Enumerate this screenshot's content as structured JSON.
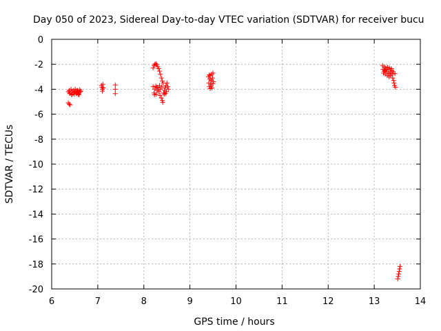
{
  "chart_data": {
    "type": "scatter",
    "title": "Day 050 of 2023, Sidereal Day-to-day VTEC variation (SDTVAR) for receiver bucu",
    "xlabel": "GPS time / hours",
    "ylabel": "SDTVAR / TECUs",
    "xlim": [
      6,
      14
    ],
    "ylim": [
      -20,
      0
    ],
    "xticks": [
      6,
      7,
      8,
      9,
      10,
      11,
      12,
      13,
      14
    ],
    "yticks": [
      0,
      -2,
      -4,
      -6,
      -8,
      -10,
      -12,
      -14,
      -16,
      -18,
      -20
    ],
    "xtick_labels": [
      "6",
      "7",
      "8",
      "9",
      "10",
      "11",
      "12",
      "13",
      "14"
    ],
    "ytick_labels": [
      "0",
      "-2",
      "-4",
      "-6",
      "-8",
      "-10",
      "-12",
      "-14",
      "-16",
      "-18",
      "-20"
    ],
    "grid": true,
    "marker": "plus",
    "colors": {
      "series": "#ff0000",
      "grid": "#a0a0a0",
      "axis": "#000000"
    },
    "series": [
      {
        "name": "SDTVAR",
        "points": [
          [
            6.36,
            -5.1
          ],
          [
            6.38,
            -5.2
          ],
          [
            6.4,
            -5.25
          ],
          [
            6.36,
            -4.2
          ],
          [
            6.38,
            -4.1
          ],
          [
            6.4,
            -4.3
          ],
          [
            6.42,
            -4.0
          ],
          [
            6.44,
            -4.2
          ],
          [
            6.45,
            -4.4
          ],
          [
            6.47,
            -4.1
          ],
          [
            6.48,
            -4.3
          ],
          [
            6.5,
            -4.2
          ],
          [
            6.51,
            -4.0
          ],
          [
            6.53,
            -4.35
          ],
          [
            6.54,
            -4.1
          ],
          [
            6.55,
            -4.25
          ],
          [
            6.57,
            -4.4
          ],
          [
            6.58,
            -4.15
          ],
          [
            6.6,
            -4.3
          ],
          [
            6.61,
            -4.05
          ],
          [
            6.62,
            -4.2
          ],
          [
            6.39,
            -4.35
          ],
          [
            6.43,
            -4.45
          ],
          [
            6.49,
            -4.4
          ],
          [
            6.56,
            -4.1
          ],
          [
            6.59,
            -4.45
          ],
          [
            6.63,
            -4.15
          ],
          [
            7.08,
            -3.7
          ],
          [
            7.09,
            -3.85
          ],
          [
            7.1,
            -4.0
          ],
          [
            7.11,
            -3.6
          ],
          [
            7.12,
            -3.9
          ],
          [
            7.1,
            -4.15
          ],
          [
            7.38,
            -3.65
          ],
          [
            7.38,
            -4.0
          ],
          [
            7.38,
            -4.35
          ],
          [
            8.2,
            -2.3
          ],
          [
            8.22,
            -2.1
          ],
          [
            8.24,
            -2.0
          ],
          [
            8.26,
            -1.95
          ],
          [
            8.28,
            -2.05
          ],
          [
            8.3,
            -2.2
          ],
          [
            8.32,
            -2.35
          ],
          [
            8.34,
            -2.55
          ],
          [
            8.36,
            -2.8
          ],
          [
            8.38,
            -3.1
          ],
          [
            8.4,
            -3.35
          ],
          [
            8.42,
            -3.5
          ],
          [
            8.2,
            -3.8
          ],
          [
            8.22,
            -4.3
          ],
          [
            8.24,
            -4.0
          ],
          [
            8.26,
            -3.75
          ],
          [
            8.27,
            -4.4
          ],
          [
            8.29,
            -4.1
          ],
          [
            8.31,
            -3.9
          ],
          [
            8.33,
            -4.2
          ],
          [
            8.35,
            -4.5
          ],
          [
            8.36,
            -4.0
          ],
          [
            8.38,
            -4.7
          ],
          [
            8.4,
            -4.9
          ],
          [
            8.41,
            -5.05
          ],
          [
            8.43,
            -4.3
          ],
          [
            8.45,
            -4.1
          ],
          [
            8.46,
            -3.9
          ],
          [
            8.48,
            -3.7
          ],
          [
            8.5,
            -3.5
          ],
          [
            8.52,
            -3.8
          ],
          [
            8.53,
            -4.0
          ],
          [
            8.49,
            -4.2
          ],
          [
            8.44,
            -4.4
          ],
          [
            8.39,
            -3.8
          ],
          [
            8.34,
            -3.7
          ],
          [
            8.28,
            -3.85
          ],
          [
            8.23,
            -4.45
          ],
          [
            8.47,
            -4.35
          ],
          [
            9.4,
            -3.0
          ],
          [
            9.41,
            -3.5
          ],
          [
            9.42,
            -3.8
          ],
          [
            9.43,
            -3.2
          ],
          [
            9.44,
            -2.9
          ],
          [
            9.45,
            -3.6
          ],
          [
            9.46,
            -3.3
          ],
          [
            9.47,
            -2.8
          ],
          [
            9.48,
            -3.9
          ],
          [
            9.49,
            -3.1
          ],
          [
            9.5,
            -2.7
          ],
          [
            9.51,
            -3.4
          ],
          [
            9.42,
            -2.85
          ],
          [
            9.46,
            -3.75
          ],
          [
            9.5,
            -3.55
          ],
          [
            9.44,
            -3.95
          ],
          [
            13.18,
            -2.1
          ],
          [
            13.19,
            -2.4
          ],
          [
            13.2,
            -2.7
          ],
          [
            13.22,
            -2.2
          ],
          [
            13.23,
            -2.5
          ],
          [
            13.24,
            -2.8
          ],
          [
            13.25,
            -2.3
          ],
          [
            13.27,
            -2.6
          ],
          [
            13.28,
            -2.9
          ],
          [
            13.3,
            -2.4
          ],
          [
            13.31,
            -2.7
          ],
          [
            13.32,
            -3.0
          ],
          [
            13.33,
            -2.3
          ],
          [
            13.35,
            -2.6
          ],
          [
            13.36,
            -2.9
          ],
          [
            13.38,
            -2.5
          ],
          [
            13.39,
            -2.8
          ],
          [
            13.4,
            -3.1
          ],
          [
            13.41,
            -2.6
          ],
          [
            13.42,
            -3.3
          ],
          [
            13.43,
            -3.5
          ],
          [
            13.44,
            -3.7
          ],
          [
            13.46,
            -3.85
          ],
          [
            13.21,
            -2.55
          ],
          [
            13.26,
            -2.45
          ],
          [
            13.29,
            -2.25
          ],
          [
            13.34,
            -2.75
          ],
          [
            13.37,
            -2.35
          ],
          [
            13.45,
            -2.75
          ],
          [
            13.51,
            -19.2
          ],
          [
            13.52,
            -19.0
          ],
          [
            13.53,
            -18.8
          ],
          [
            13.54,
            -18.6
          ],
          [
            13.55,
            -18.4
          ],
          [
            13.56,
            -18.2
          ]
        ]
      }
    ]
  }
}
